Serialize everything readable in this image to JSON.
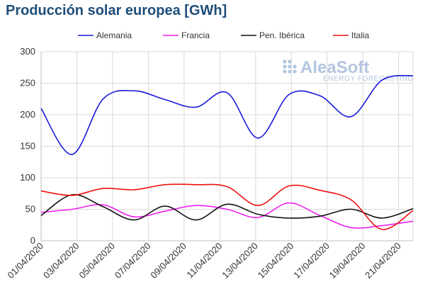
{
  "chart_data": {
    "type": "line",
    "title": "Producción solar europea [GWh]",
    "ylim": [
      0,
      300
    ],
    "yticks": [
      0,
      50,
      100,
      150,
      200,
      250,
      300
    ],
    "xticks": [
      "01/04/2020",
      "03/04/2020",
      "05/04/2020",
      "07/04/2020",
      "09/04/2020",
      "11/04/2020",
      "13/04/2020",
      "15/04/2020",
      "17/04/2020",
      "19/04/2020",
      "21/04/2020"
    ],
    "grid": true,
    "legend": "top",
    "series": [
      {
        "name": "Alemania",
        "color": "#1a1adb",
        "values": [
          210,
          137,
          225,
          238,
          224,
          212,
          235,
          163,
          232,
          230,
          197,
          255,
          262
        ]
      },
      {
        "name": "Francia",
        "color": "#ee22ee",
        "values": [
          45,
          50,
          57,
          38,
          47,
          56,
          50,
          37,
          60,
          40,
          21,
          24,
          31
        ]
      },
      {
        "name": "Pen. Ibérica",
        "color": "#111111",
        "values": [
          40,
          73,
          54,
          33,
          55,
          33,
          58,
          42,
          36,
          39,
          50,
          36,
          51
        ]
      },
      {
        "name": "Italia",
        "color": "#ee1111",
        "values": [
          79,
          72,
          83,
          81,
          89,
          89,
          86,
          56,
          87,
          80,
          65,
          18,
          48
        ]
      }
    ]
  },
  "watermark": {
    "main": "AleaSoft",
    "sub": "ENERGY FORECASTING"
  }
}
